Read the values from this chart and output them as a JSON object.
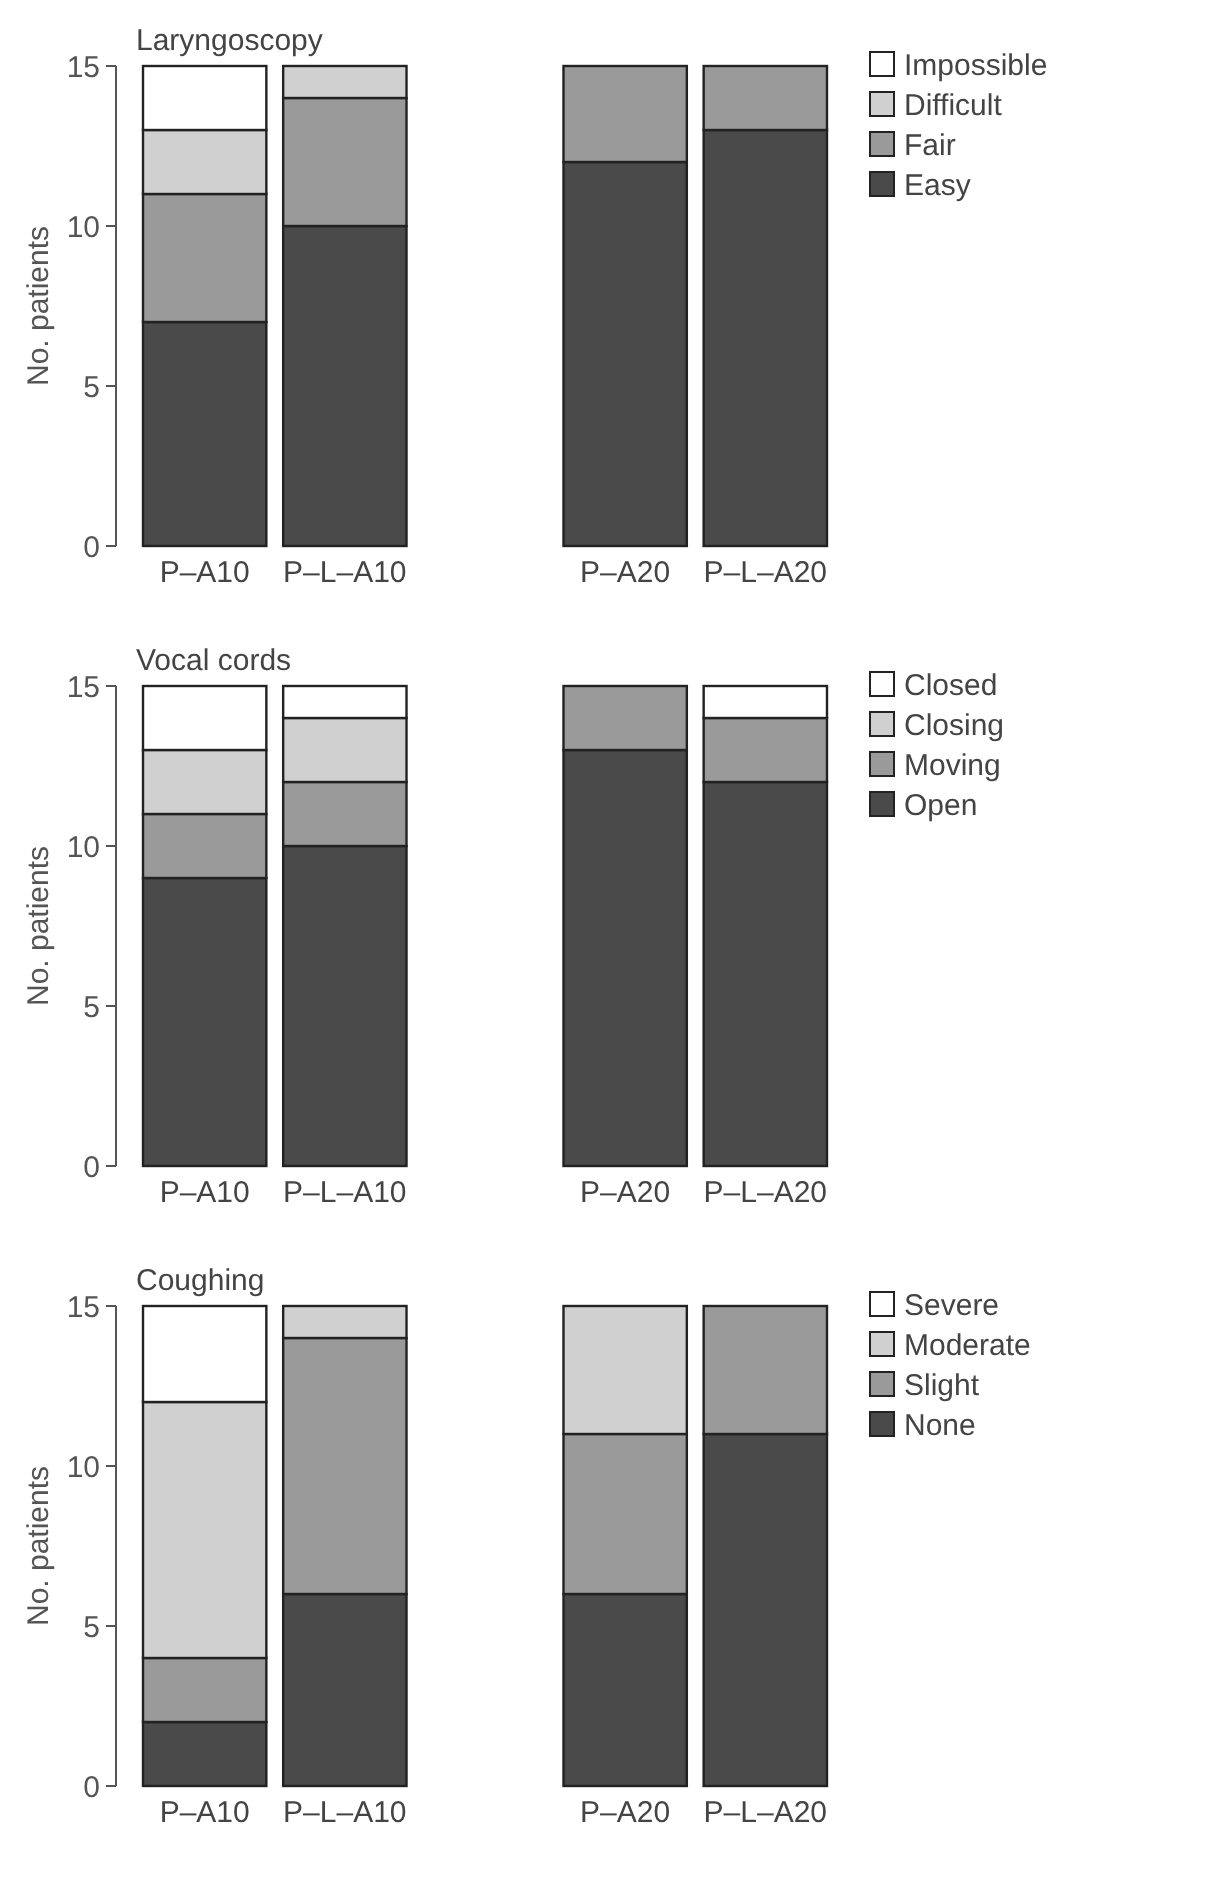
{
  "chart_data": [
    {
      "type": "bar",
      "stacked": true,
      "title": "Laryngoscopy",
      "ylabel": "No. patients",
      "categories": [
        "P–A10",
        "P–L–A10",
        null,
        "P–A20",
        "P–L–A20"
      ],
      "ylim": [
        0,
        15
      ],
      "yticks": [
        0,
        5,
        10,
        15
      ],
      "legend": "right",
      "series": [
        {
          "name": "Easy",
          "color": "#4a4a4a",
          "values": [
            7,
            10,
            null,
            12,
            13
          ]
        },
        {
          "name": "Fair",
          "color": "#9a9a9a",
          "values": [
            4,
            4,
            null,
            3,
            2
          ]
        },
        {
          "name": "Difficult",
          "color": "#d0d0d0",
          "values": [
            2,
            1,
            null,
            0,
            0
          ]
        },
        {
          "name": "Impossible",
          "color": "#ffffff",
          "values": [
            2,
            0,
            null,
            0,
            0
          ]
        }
      ]
    },
    {
      "type": "bar",
      "stacked": true,
      "title": "Vocal cords",
      "ylabel": "No. patients",
      "categories": [
        "P–A10",
        "P–L–A10",
        null,
        "P–A20",
        "P–L–A20"
      ],
      "ylim": [
        0,
        15
      ],
      "yticks": [
        0,
        5,
        10,
        15
      ],
      "legend": "right",
      "series": [
        {
          "name": "Open",
          "color": "#4a4a4a",
          "values": [
            9,
            10,
            null,
            13,
            12
          ]
        },
        {
          "name": "Moving",
          "color": "#9a9a9a",
          "values": [
            2,
            2,
            null,
            2,
            2
          ]
        },
        {
          "name": "Closing",
          "color": "#d0d0d0",
          "values": [
            2,
            2,
            null,
            0,
            0
          ]
        },
        {
          "name": "Closed",
          "color": "#ffffff",
          "values": [
            2,
            1,
            null,
            0,
            1
          ]
        }
      ]
    },
    {
      "type": "bar",
      "stacked": true,
      "title": "Coughing",
      "ylabel": "No. patients",
      "categories": [
        "P–A10",
        "P–L–A10",
        null,
        "P–A20",
        "P–L–A20"
      ],
      "ylim": [
        0,
        15
      ],
      "yticks": [
        0,
        5,
        10,
        15
      ],
      "legend": "right",
      "series": [
        {
          "name": "None",
          "color": "#4a4a4a",
          "values": [
            2,
            6,
            null,
            6,
            11
          ]
        },
        {
          "name": "Slight",
          "color": "#9a9a9a",
          "values": [
            2,
            8,
            null,
            5,
            4
          ]
        },
        {
          "name": "Moderate",
          "color": "#d0d0d0",
          "values": [
            8,
            1,
            null,
            4,
            0
          ]
        },
        {
          "name": "Severe",
          "color": "#ffffff",
          "values": [
            3,
            0,
            null,
            0,
            0
          ]
        }
      ]
    }
  ]
}
